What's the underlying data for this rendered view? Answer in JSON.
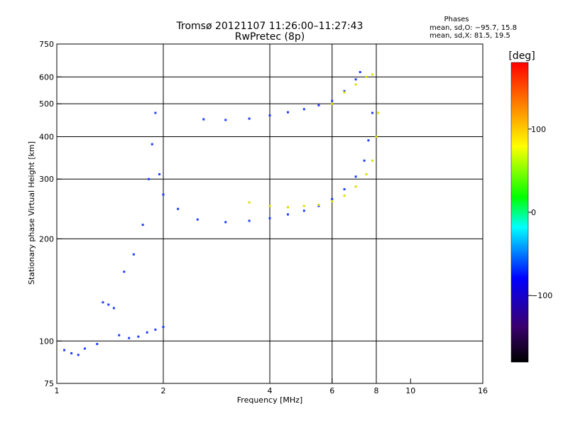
{
  "title_line1": "Tromsø 20121107 11:26:00–11:27:43",
  "title_line2": "RwPretec (8p)",
  "phases": {
    "heading": "Phases",
    "line_o": "mean, sd,O: −95.7, 15.8",
    "line_x": "mean, sd,X: 81.5, 19.5"
  },
  "colorbar": {
    "unit_label": "[deg]",
    "ticks": [
      {
        "value": 100,
        "label": "100"
      },
      {
        "value": 0,
        "label": "0"
      },
      {
        "value": -100,
        "label": "−100"
      }
    ],
    "range": [
      -180,
      180
    ],
    "colors": {
      "top": "#ff0000",
      "mid_hi": "#ffff00",
      "mid": "#00ff00",
      "mid_lo": "#00ffff",
      "low": "#0000ff",
      "bottom": "#000000"
    }
  },
  "chart_data": {
    "type": "scatter",
    "title": "Tromsø 20121107 11:26:00–11:27:43",
    "subtitle": "RwPretec (8p)",
    "xlabel": "Frequency [MHz]",
    "ylabel": "Stationary phase Virtual Height [km]",
    "xscale": "log",
    "yscale": "log",
    "xlim": [
      1,
      16
    ],
    "ylim": [
      75,
      750
    ],
    "x_ticks": [
      1,
      2,
      4,
      6,
      8,
      10,
      16
    ],
    "y_ticks": [
      75,
      100,
      200,
      300,
      400,
      500,
      600,
      750
    ],
    "x_gridlines": [
      2,
      4,
      6,
      8
    ],
    "y_gridlines": [
      100,
      200,
      300,
      400,
      500,
      600
    ],
    "series": [
      {
        "name": "O",
        "color": "#1f3cff",
        "points": [
          [
            1.05,
            94
          ],
          [
            1.1,
            92
          ],
          [
            1.15,
            91
          ],
          [
            1.2,
            95
          ],
          [
            1.3,
            98
          ],
          [
            1.35,
            130
          ],
          [
            1.4,
            128
          ],
          [
            1.45,
            125
          ],
          [
            1.5,
            104
          ],
          [
            1.6,
            102
          ],
          [
            1.7,
            103
          ],
          [
            1.8,
            106
          ],
          [
            1.9,
            108
          ],
          [
            2.0,
            110
          ],
          [
            1.55,
            160
          ],
          [
            1.65,
            180
          ],
          [
            1.75,
            220
          ],
          [
            1.82,
            300
          ],
          [
            1.86,
            380
          ],
          [
            1.9,
            470
          ],
          [
            1.95,
            310
          ],
          [
            2.0,
            270
          ],
          [
            2.2,
            245
          ],
          [
            2.5,
            228
          ],
          [
            3.0,
            224
          ],
          [
            3.5,
            226
          ],
          [
            4.0,
            230
          ],
          [
            4.5,
            236
          ],
          [
            5.0,
            242
          ],
          [
            5.5,
            250
          ],
          [
            6.0,
            262
          ],
          [
            6.5,
            280
          ],
          [
            7.0,
            305
          ],
          [
            7.4,
            340
          ],
          [
            7.6,
            390
          ],
          [
            7.8,
            470
          ],
          [
            2.6,
            450
          ],
          [
            3.0,
            448
          ],
          [
            3.5,
            452
          ],
          [
            4.0,
            462
          ],
          [
            4.5,
            472
          ],
          [
            5.0,
            482
          ],
          [
            5.5,
            495
          ],
          [
            6.0,
            510
          ],
          [
            6.5,
            545
          ],
          [
            7.0,
            590
          ],
          [
            7.2,
            620
          ]
        ]
      },
      {
        "name": "X",
        "color": "#d8e000",
        "points": [
          [
            3.5,
            256
          ],
          [
            4.0,
            250
          ],
          [
            4.5,
            248
          ],
          [
            5.0,
            250
          ],
          [
            5.5,
            252
          ],
          [
            6.0,
            258
          ],
          [
            6.5,
            268
          ],
          [
            7.0,
            285
          ],
          [
            7.5,
            310
          ],
          [
            7.8,
            340
          ],
          [
            8.0,
            400
          ],
          [
            8.1,
            470
          ],
          [
            6.0,
            500
          ],
          [
            6.5,
            540
          ],
          [
            7.0,
            570
          ],
          [
            7.5,
            600
          ],
          [
            7.8,
            610
          ]
        ]
      }
    ],
    "grid": "partial",
    "legend": "colorbar-right"
  }
}
